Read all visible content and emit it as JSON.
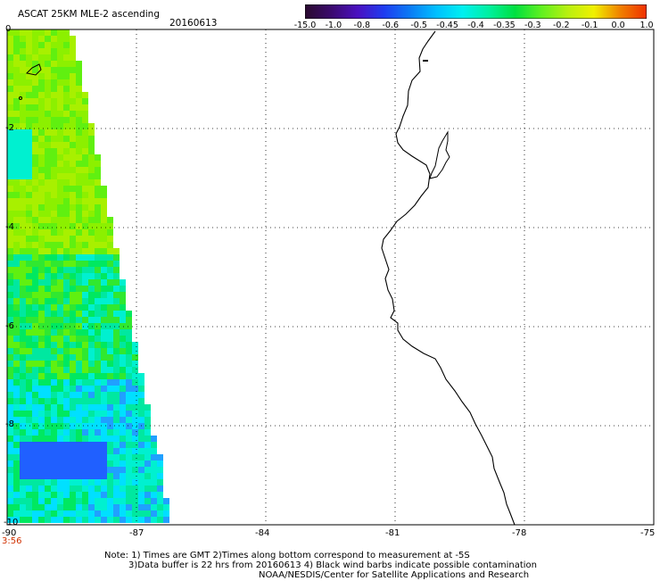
{
  "header": {
    "title": "ASCAT 25KM MLE-2 ascending",
    "date": "20160613"
  },
  "colorbar": {
    "labels": [
      "-15.0",
      "-1.0",
      "-0.8",
      "-0.6",
      "-0.5",
      "-0.45",
      "-0.4",
      "-0.35",
      "-0.3",
      "-0.2",
      "-0.1",
      "0.0",
      "1.0"
    ],
    "colors": [
      "#2a0a2e",
      "#3b0a6e",
      "#4a10c0",
      "#1f3cf0",
      "#0a7cf5",
      "#00c0ff",
      "#00f0f0",
      "#00f0a0",
      "#00e040",
      "#60f020",
      "#b8f010",
      "#f0f000",
      "#f08000",
      "#f03000"
    ]
  },
  "map": {
    "lon_ticks": [
      "-90",
      "-87",
      "-84",
      "-81",
      "-78",
      "-75"
    ],
    "lat_ticks": [
      "0",
      "-2",
      "-4",
      "-6",
      "-8",
      "-10"
    ],
    "time_label": "3:56",
    "time_color": "#d03000",
    "lon_range": [
      -90,
      -75
    ],
    "lat_range": [
      -10,
      0
    ]
  },
  "notes": {
    "line1": "Note: 1) Times are GMT 2)Times along bottom correspond to measurement at -5S",
    "line2": "3)Data buffer is 22 hrs from 20160613 4) Black wind barbs indicate possible contamination",
    "line3": "NOAA/NESDIS/Center for Satellite Applications and Research"
  }
}
